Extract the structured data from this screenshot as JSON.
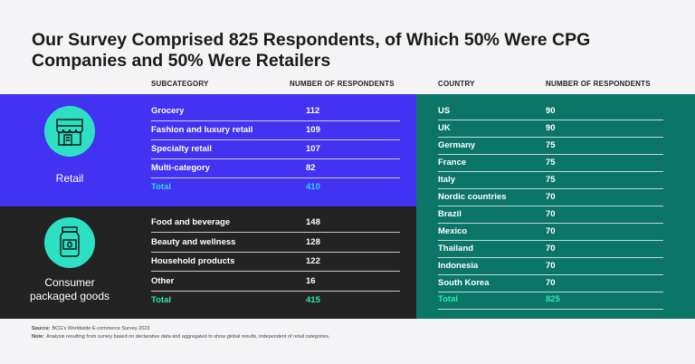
{
  "title": "Our Survey Comprised 825 Respondents, of Which 50% Were CPG Companies and 50% Were Retailers",
  "segments_table": {
    "headers": [
      "SUBCATEGORY",
      "NUMBER OF RESPONDENTS"
    ],
    "groups": [
      {
        "label": "Retail",
        "rows": [
          [
            "Grocery",
            112
          ],
          [
            "Fashion and luxury retail",
            109
          ],
          [
            "Specialty retail",
            107
          ],
          [
            "Multi-category",
            82
          ]
        ],
        "total": [
          "Total",
          410
        ]
      },
      {
        "label": "Consumer packaged goods",
        "rows": [
          [
            "Food and beverage",
            148
          ],
          [
            "Beauty and wellness",
            128
          ],
          [
            "Household products",
            122
          ],
          [
            "Other",
            16
          ]
        ],
        "total": [
          "Total",
          415
        ]
      }
    ]
  },
  "country_table": {
    "headers": [
      "COUNTRY",
      "NUMBER OF RESPONDENTS"
    ],
    "rows": [
      [
        "US",
        90
      ],
      [
        "UK",
        90
      ],
      [
        "Germany",
        75
      ],
      [
        "France",
        75
      ],
      [
        "Italy",
        75
      ],
      [
        "Nordic countries",
        70
      ],
      [
        "Brazil",
        70
      ],
      [
        "Mexico",
        70
      ],
      [
        "Thailand",
        70
      ],
      [
        "Indonesia",
        70
      ],
      [
        "South Korea",
        70
      ]
    ],
    "total": [
      "Total",
      825
    ]
  },
  "source": {
    "label": "Source:",
    "text": "BCG's Worldwide E-commerce Survey 2023"
  },
  "note": {
    "label": "Note:",
    "text": "Analysis resulting from survey based on declarative data and aggregated to show global results, independent of retail categories."
  }
}
